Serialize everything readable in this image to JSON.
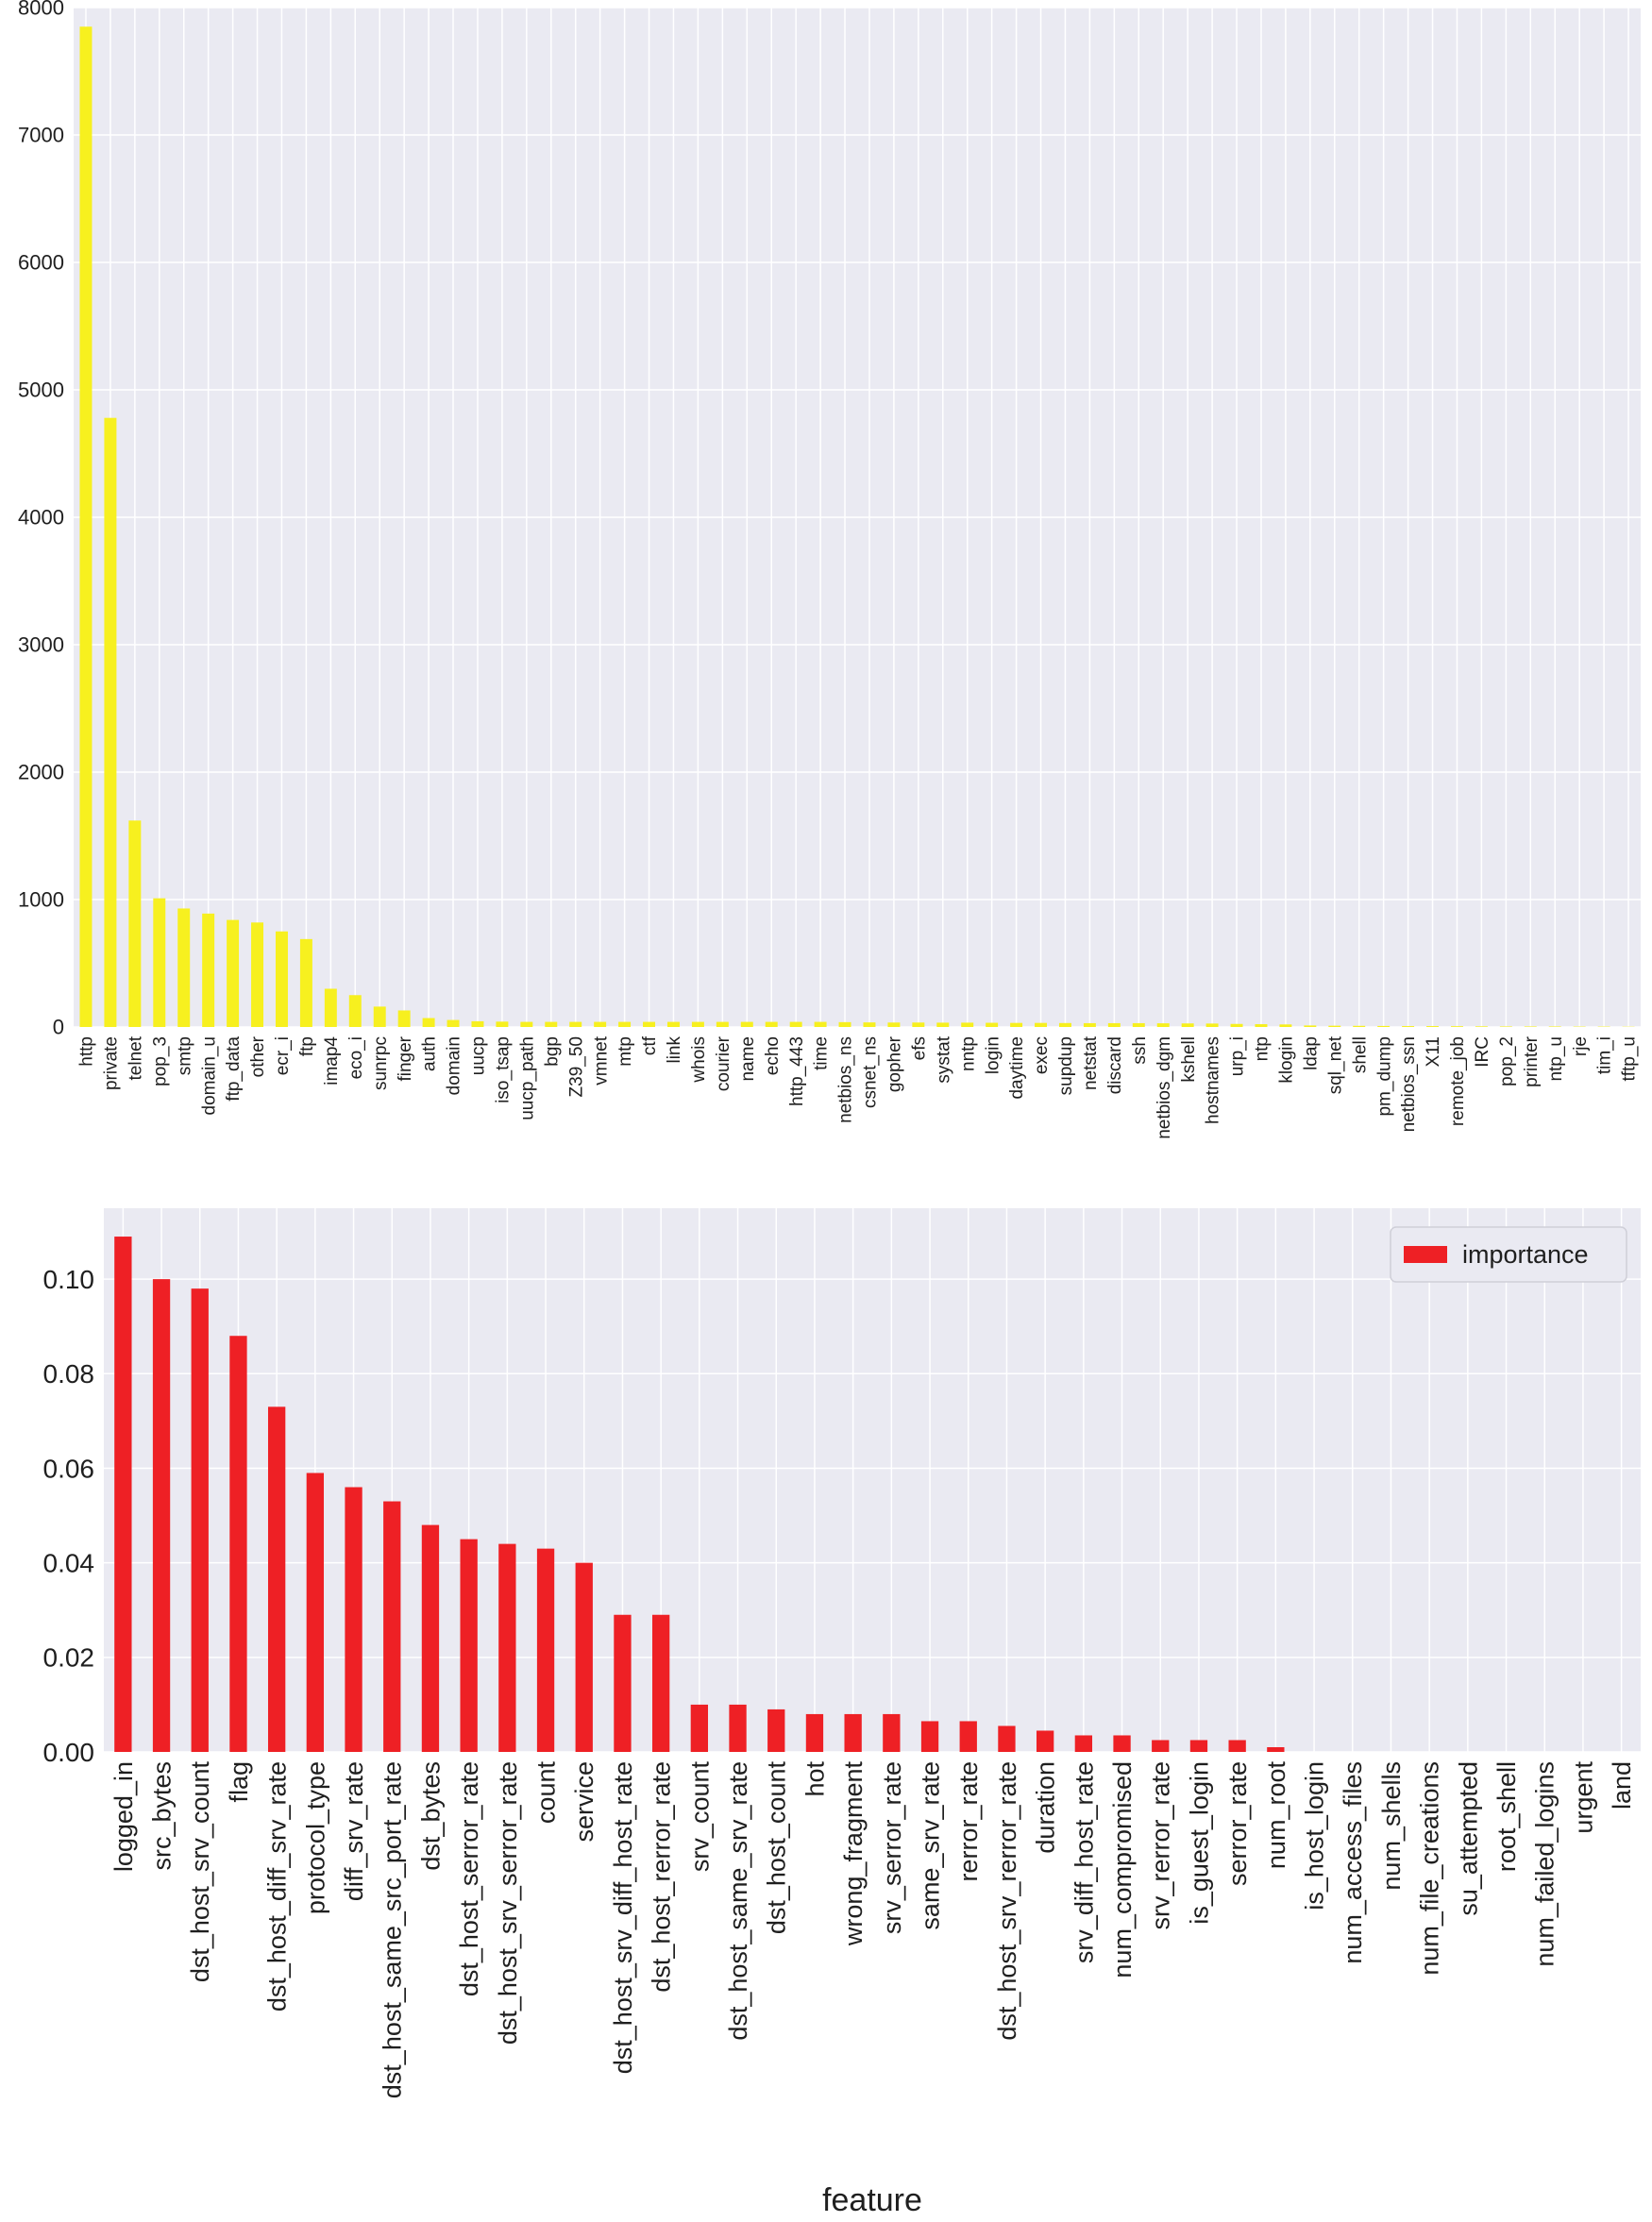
{
  "chart_data": [
    {
      "type": "bar",
      "title": "",
      "xlabel": "",
      "ylabel": "",
      "ylim": [
        0,
        8000
      ],
      "yticks": [
        0,
        1000,
        2000,
        3000,
        4000,
        5000,
        6000,
        7000,
        8000
      ],
      "grid": true,
      "bar_color": "#f7f01f",
      "background": "#eaeaf2",
      "categories": [
        "http",
        "private",
        "telnet",
        "pop_3",
        "smtp",
        "domain_u",
        "ftp_data",
        "other",
        "ecr_i",
        "ftp",
        "imap4",
        "eco_i",
        "sunrpc",
        "finger",
        "auth",
        "domain",
        "uucp",
        "iso_tsap",
        "uucp_path",
        "bgp",
        "Z39_50",
        "vmnet",
        "mtp",
        "ctf",
        "link",
        "whois",
        "courier",
        "name",
        "echo",
        "http_443",
        "time",
        "netbios_ns",
        "csnet_ns",
        "gopher",
        "efs",
        "systat",
        "nntp",
        "login",
        "daytime",
        "exec",
        "supdup",
        "netstat",
        "discard",
        "ssh",
        "netbios_dgm",
        "kshell",
        "hostnames",
        "urp_i",
        "ntp",
        "klogin",
        "ldap",
        "sql_net",
        "shell",
        "pm_dump",
        "netbios_ssn",
        "X11",
        "remote_job",
        "IRC",
        "pop_2",
        "printer",
        "ntp_u",
        "rje",
        "tim_i",
        "tftp_u"
      ],
      "values": [
        7850,
        4780,
        1620,
        1010,
        930,
        890,
        840,
        820,
        750,
        690,
        300,
        250,
        160,
        130,
        70,
        55,
        45,
        42,
        40,
        40,
        40,
        40,
        40,
        40,
        40,
        40,
        40,
        40,
        40,
        40,
        40,
        38,
        36,
        35,
        35,
        34,
        34,
        33,
        32,
        32,
        31,
        30,
        30,
        30,
        29,
        28,
        27,
        24,
        22,
        20,
        12,
        10,
        9,
        8,
        7,
        7,
        6,
        5,
        4,
        4,
        4,
        3,
        3,
        2
      ]
    },
    {
      "type": "bar",
      "title": "",
      "xlabel": "feature",
      "ylabel": "",
      "ylim": [
        0,
        0.115
      ],
      "yticks": [
        "0.00",
        "0.02",
        "0.04",
        "0.06",
        "0.08",
        "0.10"
      ],
      "grid": true,
      "legend": "top-right",
      "bar_color": "#ee2025",
      "background": "#eaeaf2",
      "series": [
        {
          "name": "importance"
        }
      ],
      "categories": [
        "logged_in",
        "src_bytes",
        "dst_host_srv_count",
        "flag",
        "dst_host_diff_srv_rate",
        "protocol_type",
        "diff_srv_rate",
        "dst_host_same_src_port_rate",
        "dst_bytes",
        "dst_host_serror_rate",
        "dst_host_srv_serror_rate",
        "count",
        "service",
        "dst_host_srv_diff_host_rate",
        "dst_host_rerror_rate",
        "srv_count",
        "dst_host_same_srv_rate",
        "dst_host_count",
        "hot",
        "wrong_fragment",
        "srv_serror_rate",
        "same_srv_rate",
        "rerror_rate",
        "dst_host_srv_rerror_rate",
        "duration",
        "srv_diff_host_rate",
        "num_compromised",
        "srv_rerror_rate",
        "is_guest_login",
        "serror_rate",
        "num_root",
        "is_host_login",
        "num_access_files",
        "num_shells",
        "num_file_creations",
        "su_attempted",
        "root_shell",
        "num_failed_logins",
        "urgent",
        "land"
      ],
      "values": [
        0.109,
        0.1,
        0.098,
        0.088,
        0.073,
        0.059,
        0.056,
        0.053,
        0.048,
        0.045,
        0.044,
        0.043,
        0.04,
        0.029,
        0.029,
        0.01,
        0.01,
        0.009,
        0.008,
        0.008,
        0.008,
        0.0065,
        0.0065,
        0.0055,
        0.0045,
        0.0035,
        0.0035,
        0.0025,
        0.0025,
        0.0025,
        0.001,
        0,
        0,
        0,
        0,
        0,
        0,
        0,
        0,
        0
      ]
    }
  ]
}
